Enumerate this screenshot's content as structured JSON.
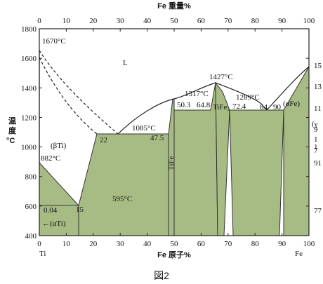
{
  "top_axis": {
    "title": "Fe 重量%",
    "ticks": [
      "0",
      "10",
      "20",
      "30",
      "40",
      "50",
      "60",
      "70",
      "80",
      "90",
      "100"
    ]
  },
  "bottom_axis": {
    "title": "Fe 原子%",
    "ticks": [
      "0",
      "10",
      "20",
      "30",
      "40",
      "50",
      "60",
      "70",
      "80",
      "90",
      "100"
    ],
    "left_end": "Ti",
    "right_end": "Fe"
  },
  "left_axis": {
    "title": [
      "温",
      "度",
      "°C"
    ],
    "ticks": [
      "1800",
      "1600",
      "1400",
      "1200",
      "1000",
      "800",
      "600",
      "400"
    ]
  },
  "right_axis": {
    "ticks": [
      "15",
      "13",
      "11",
      "9",
      "7"
    ],
    "partial_ticks": [
      "1",
      "1",
      "91",
      "77"
    ],
    "gamma_label": "(γ"
  },
  "labels": {
    "t1670": "1670°C",
    "liquid": "L",
    "beta_ti": "(βTi)",
    "t882": "882°C",
    "t1085": "1085°C",
    "c22": "22",
    "c475": "47.5",
    "tife_vertical": "TiFe",
    "t1317": "1317°C",
    "c503": "50.3",
    "c648": "64.8",
    "t1427": "1427°C",
    "tife2": "TiFe₂",
    "c724": "72.4",
    "t1289": "1289°C",
    "c84": "84",
    "c90": "90",
    "alpha_fe": "(αFe)",
    "t595": "595°C",
    "c004": "0.04",
    "c15": "15",
    "alpha_ti": "←(αTi)"
  },
  "caption": "図2",
  "colors": {
    "phase_fill": "#a7bc84",
    "line": "#222222"
  }
}
